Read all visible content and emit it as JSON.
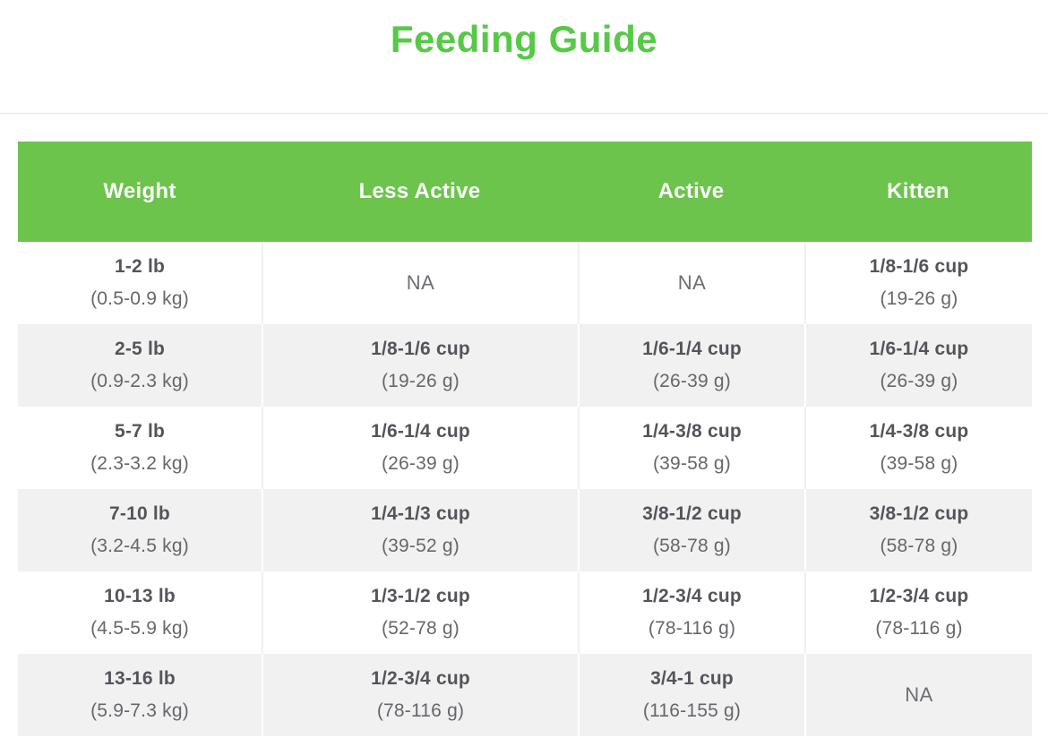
{
  "title": "Feeding Guide",
  "colors": {
    "title_green": "#56c946",
    "header_green": "#6cc44c",
    "row_alt_gray": "#f1f1f2",
    "cell_text": "#54555a",
    "cell_subtext": "#66676b"
  },
  "table": {
    "na_label": "NA",
    "columns": [
      "Weight",
      "Less Active",
      "Active",
      "Kitten"
    ],
    "rows": [
      {
        "cells": [
          {
            "main": "1-2 lb",
            "sub": "(0.5-0.9 kg)"
          },
          {
            "na": true
          },
          {
            "na": true
          },
          {
            "main": "1/8-1/6 cup",
            "sub": "(19-26 g)"
          }
        ]
      },
      {
        "cells": [
          {
            "main": "2-5 lb",
            "sub": "(0.9-2.3 kg)"
          },
          {
            "main": "1/8-1/6 cup",
            "sub": "(19-26 g)"
          },
          {
            "main": "1/6-1/4 cup",
            "sub": "(26-39 g)"
          },
          {
            "main": "1/6-1/4 cup",
            "sub": "(26-39 g)"
          }
        ]
      },
      {
        "cells": [
          {
            "main": "5-7 lb",
            "sub": "(2.3-3.2 kg)"
          },
          {
            "main": "1/6-1/4 cup",
            "sub": "(26-39 g)"
          },
          {
            "main": "1/4-3/8 cup",
            "sub": "(39-58 g)"
          },
          {
            "main": "1/4-3/8 cup",
            "sub": "(39-58 g)"
          }
        ]
      },
      {
        "cells": [
          {
            "main": "7-10 lb",
            "sub": "(3.2-4.5 kg)"
          },
          {
            "main": "1/4-1/3 cup",
            "sub": "(39-52 g)"
          },
          {
            "main": "3/8-1/2 cup",
            "sub": "(58-78 g)"
          },
          {
            "main": "3/8-1/2 cup",
            "sub": "(58-78 g)"
          }
        ]
      },
      {
        "cells": [
          {
            "main": "10-13 lb",
            "sub": "(4.5-5.9 kg)"
          },
          {
            "main": "1/3-1/2 cup",
            "sub": "(52-78 g)"
          },
          {
            "main": "1/2-3/4 cup",
            "sub": "(78-116 g)"
          },
          {
            "main": "1/2-3/4 cup",
            "sub": "(78-116 g)"
          }
        ]
      },
      {
        "cells": [
          {
            "main": "13-16 lb",
            "sub": "(5.9-7.3 kg)"
          },
          {
            "main": "1/2-3/4 cup",
            "sub": "(78-116 g)"
          },
          {
            "main": "3/4-1 cup",
            "sub": "(116-155 g)"
          },
          {
            "na": true
          }
        ]
      }
    ]
  }
}
